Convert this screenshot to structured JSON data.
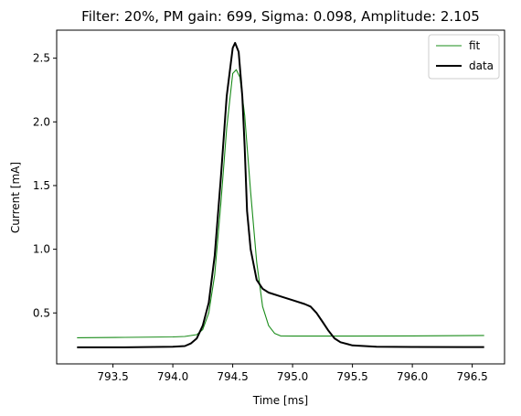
{
  "chart_data": {
    "type": "line",
    "title": "Filter: 20%, PM gain: 699, Sigma: 0.098, Amplitude: 2.105",
    "xlabel": "Time [ms]",
    "ylabel": "Current [mA]",
    "xlim": [
      793.03,
      796.77
    ],
    "ylim": [
      0.1,
      2.72
    ],
    "xticks": [
      793.5,
      794.0,
      794.5,
      795.0,
      795.5,
      796.0,
      796.5
    ],
    "xtick_labels": [
      "793.5",
      "794.0",
      "794.5",
      "795.0",
      "795.5",
      "796.0",
      "796.5"
    ],
    "yticks": [
      0.5,
      1.0,
      1.5,
      2.0,
      2.5
    ],
    "ytick_labels": [
      "0.5",
      "1.0",
      "1.5",
      "2.0",
      "2.5"
    ],
    "grid": false,
    "legend_position": "top-right",
    "series": [
      {
        "name": "fit",
        "color": "#1a8c1a",
        "x": [
          793.2,
          793.6,
          794.0,
          794.1,
          794.2,
          794.25,
          794.3,
          794.35,
          794.4,
          794.45,
          794.5,
          794.53,
          794.56,
          794.6,
          794.65,
          794.7,
          794.75,
          794.8,
          794.85,
          794.9,
          795.0,
          795.5,
          796.0,
          796.6
        ],
        "y": [
          0.305,
          0.308,
          0.312,
          0.315,
          0.33,
          0.37,
          0.5,
          0.8,
          1.35,
          1.95,
          2.38,
          2.41,
          2.35,
          2.05,
          1.45,
          0.9,
          0.55,
          0.4,
          0.34,
          0.32,
          0.318,
          0.318,
          0.32,
          0.323
        ]
      },
      {
        "name": "data",
        "color": "#000000",
        "x": [
          793.2,
          793.6,
          794.0,
          794.1,
          794.15,
          794.2,
          794.25,
          794.3,
          794.35,
          794.4,
          794.45,
          794.5,
          794.52,
          794.55,
          794.58,
          794.6,
          794.62,
          794.65,
          794.7,
          794.75,
          794.8,
          794.9,
          795.0,
          795.1,
          795.15,
          795.2,
          795.25,
          795.3,
          795.35,
          795.4,
          795.5,
          795.7,
          796.0,
          796.6
        ],
        "y": [
          0.23,
          0.23,
          0.235,
          0.24,
          0.26,
          0.3,
          0.4,
          0.58,
          0.95,
          1.55,
          2.2,
          2.58,
          2.62,
          2.55,
          2.2,
          1.8,
          1.3,
          1.0,
          0.76,
          0.69,
          0.66,
          0.63,
          0.6,
          0.57,
          0.55,
          0.5,
          0.43,
          0.36,
          0.3,
          0.27,
          0.245,
          0.235,
          0.233,
          0.232
        ]
      }
    ]
  }
}
